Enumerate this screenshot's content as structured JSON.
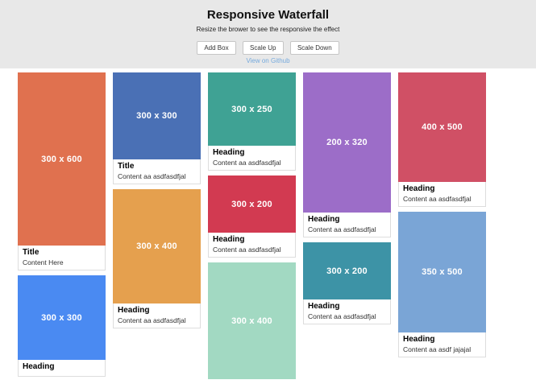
{
  "header": {
    "title": "Responsive Waterfall",
    "subtitle": "Resize the brower to see the responsive the effect",
    "buttons": [
      {
        "label": "Add Box"
      },
      {
        "label": "Scale Up"
      },
      {
        "label": "Scale Down"
      }
    ],
    "link": "View on Github",
    "background": "#e8e8e8",
    "link_color": "#76aadd"
  },
  "waterfall": {
    "columns": [
      {
        "cards": [
          {
            "size_label": "300 x 600",
            "color": "#e0714f",
            "heading": "Title",
            "content": "Content Here"
          },
          {
            "size_label": "300 x 300",
            "color": "#4a8af2",
            "heading": "Heading",
            "content": ""
          }
        ]
      },
      {
        "cards": [
          {
            "size_label": "300 x 300",
            "color": "#4a70b5",
            "heading": "Title",
            "content": "Content aa asdfasdfjal"
          },
          {
            "size_label": "300 x 400",
            "color": "#e5a04e",
            "heading": "Heading",
            "content": "Content aa asdfasdfjal"
          }
        ]
      },
      {
        "cards": [
          {
            "size_label": "300 x 250",
            "color": "#3fa294",
            "heading": "Heading",
            "content": "Content aa asdfasdfjal"
          },
          {
            "size_label": "300 x 200",
            "color": "#d23a51",
            "heading": "Heading",
            "content": "Content aa asdfasdfjal"
          },
          {
            "size_label": "300 x 400",
            "color": "#a2d9c2"
          }
        ]
      },
      {
        "cards": [
          {
            "size_label": "200 x 320",
            "color": "#9c6dc8",
            "heading": "Heading",
            "content": "Content aa asdfasdfjal"
          },
          {
            "size_label": "300 x 200",
            "color": "#3d93a6",
            "heading": "Heading",
            "content": "Content aa asdfasdfjal"
          }
        ]
      },
      {
        "cards": [
          {
            "size_label": "400 x 500",
            "color": "#d05065",
            "heading": "Heading",
            "content": "Content aa asdfasdfjal"
          },
          {
            "size_label": "350 x 500",
            "color": "#7aa5d6",
            "heading": "Heading",
            "content": "Content aa asdf jajajal"
          }
        ]
      }
    ]
  }
}
